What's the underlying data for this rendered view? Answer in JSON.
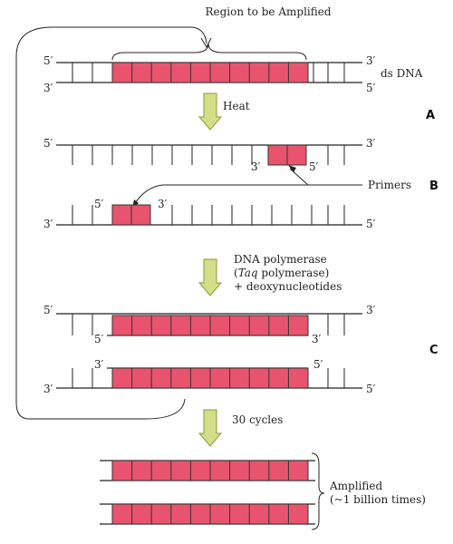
{
  "title": "Region to be Amplified",
  "prime_5": "5′",
  "prime_3": "3′",
  "ds_label": "ds DNA",
  "heat_label": "Heat",
  "primers_label": "Primers",
  "polymerase": {
    "line1": "DNA polymerase",
    "taq_open": "(",
    "taq_italic": "Taq",
    "taq_rest": " polymerase)",
    "line3": "+ deoxynucleotides"
  },
  "cycles_label": "30 cycles",
  "amplified": {
    "line1": "Amplified",
    "line2": "(~1 billion times)"
  },
  "steps": {
    "a": "A",
    "b": "B",
    "c": "C"
  },
  "colors": {
    "segment_fill": "#e8546e",
    "segment_stroke": "#333333",
    "arrow_fill": "#d2df87",
    "arrow_stroke": "#8c9a3a",
    "strand": "#222222"
  }
}
